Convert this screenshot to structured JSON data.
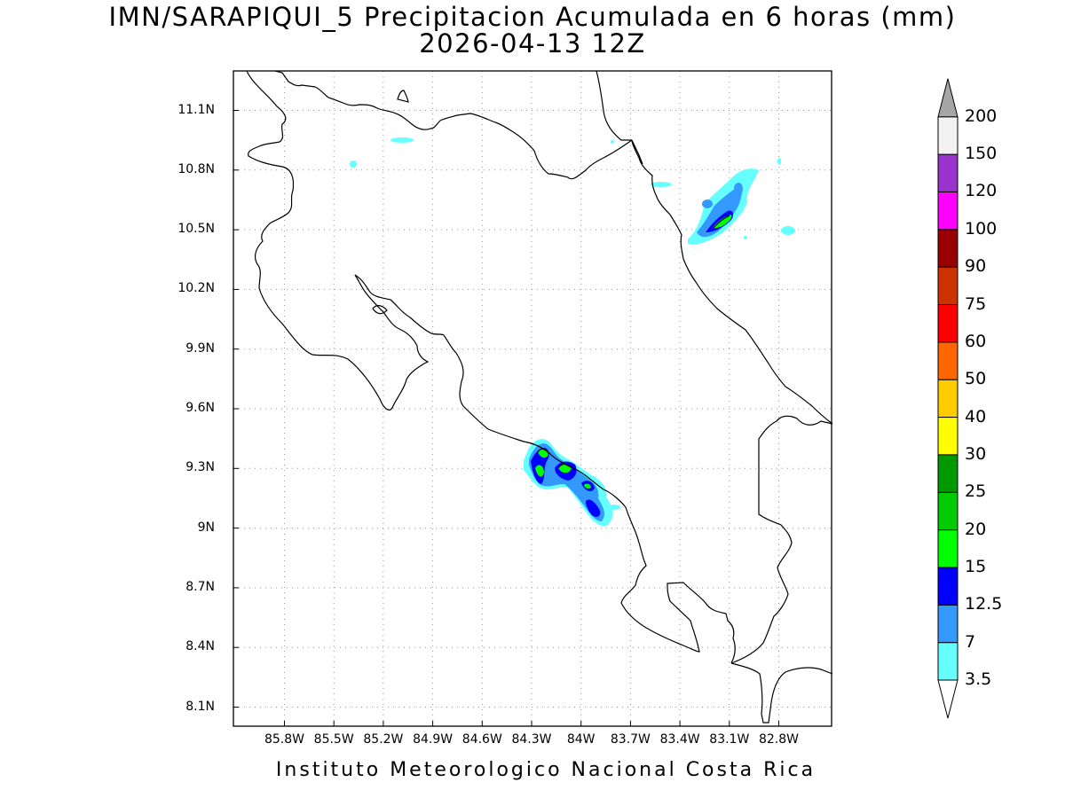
{
  "title": {
    "line1": "IMN/SARAPIQUI_5 Precipitacion Acumulada en 6 horas (mm)",
    "line2": "2026-04-13 12Z"
  },
  "footer": "Instituto Meteorologico Nacional Costa Rica",
  "axes": {
    "lon_ticks": [
      "85.8W",
      "85.5W",
      "85.2W",
      "84.9W",
      "84.6W",
      "84.3W",
      "84W",
      "83.7W",
      "83.4W",
      "83.1W",
      "82.8W"
    ],
    "lat_ticks": [
      "11.1N",
      "10.8N",
      "10.5N",
      "10.2N",
      "9.9N",
      "9.6N",
      "9.3N",
      "9N",
      "8.7N",
      "8.4N",
      "8.1N"
    ],
    "grid": true
  },
  "colorbar": {
    "labels": [
      "3.5",
      "7",
      "12.5",
      "15",
      "20",
      "25",
      "30",
      "40",
      "50",
      "60",
      "75",
      "90",
      "100",
      "120",
      "150",
      "200"
    ],
    "colors": [
      "#66ffff",
      "#3399ff",
      "#0000ff",
      "#00ff00",
      "#00cc00",
      "#009900",
      "#ffff00",
      "#ffcc00",
      "#ff6600",
      "#ff0000",
      "#cc3300",
      "#990000",
      "#ff00ff",
      "#9933cc",
      "#f2f2f2",
      "#a6a6a6"
    ]
  },
  "precip_cells": [
    {
      "lon": -83.08,
      "lat": 10.57,
      "level": "20"
    },
    {
      "lon": -84.17,
      "lat": 9.39,
      "level": "20"
    },
    {
      "lon": -84.2,
      "lat": 9.28,
      "level": "20"
    },
    {
      "lon": -84.06,
      "lat": 9.3,
      "level": "20"
    },
    {
      "lon": -83.93,
      "lat": 9.2,
      "level": "15"
    },
    {
      "lon": -83.88,
      "lat": 9.08,
      "level": "15"
    }
  ]
}
